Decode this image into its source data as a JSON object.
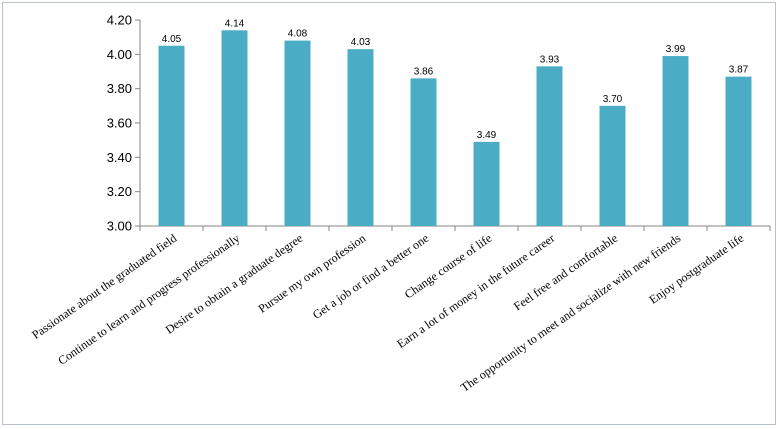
{
  "chart_data": {
    "type": "bar",
    "categories": [
      "Passionate about the graduated field",
      "Continue to learn and progress professionally",
      "Desire to obtain a graduate degree",
      "Pursue my own profession",
      "Get a job or find a better one",
      "Change course of life",
      "Earn a lot of money in the future career",
      "Feel free and comfortable",
      "The opportunity to meet and socialize with new friends",
      "Enjoy postgraduate life"
    ],
    "values": [
      4.05,
      4.14,
      4.08,
      4.03,
      3.86,
      3.49,
      3.93,
      3.7,
      3.99,
      3.87
    ],
    "value_labels": [
      "4.05",
      "4.14",
      "4.08",
      "4.03",
      "3.86",
      "3.49",
      "3.93",
      "3.70",
      "3.99",
      "3.87"
    ],
    "ylim": [
      3.0,
      4.2
    ],
    "yticks": [
      "3.00",
      "3.20",
      "3.40",
      "3.60",
      "3.80",
      "4.00",
      "4.20"
    ],
    "ytick_values": [
      3.0,
      3.2,
      3.4,
      3.6,
      3.8,
      4.0,
      4.2
    ],
    "grid": false,
    "legend": "none",
    "colors": {
      "bar": "#4bacc6",
      "axis": "#868686"
    }
  }
}
